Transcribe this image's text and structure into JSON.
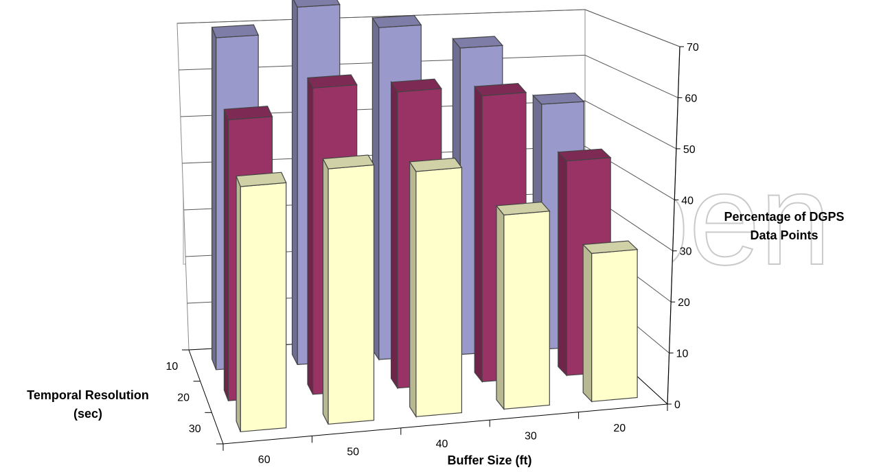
{
  "chart_data": {
    "type": "bar",
    "subtype": "3d-column",
    "x_axis": {
      "label": "Buffer Size (ft)",
      "categories": [
        "60",
        "50",
        "40",
        "30",
        "20"
      ]
    },
    "z_axis": {
      "label": "Temporal Resolution (sec)",
      "label_lines": [
        "Temporal Resolution",
        "(sec)"
      ],
      "categories": [
        "10",
        "20",
        "30"
      ]
    },
    "y_axis": {
      "label": "Percentage of DGPS Data Points",
      "label_lines": [
        "Percentage of DGPS",
        "Data Points"
      ],
      "ticks": [
        "0",
        "10",
        "20",
        "30",
        "40",
        "50",
        "60",
        "70"
      ],
      "ylim": [
        0,
        70
      ]
    },
    "series": [
      {
        "values": [
          65,
          70,
          65,
          60,
          48
        ],
        "color": "#9999cc"
      },
      {
        "values": [
          55,
          60,
          58,
          56,
          42
        ],
        "color": "#993366"
      },
      {
        "values": [
          48,
          50,
          48,
          38,
          29
        ],
        "color": "#ffffcc"
      }
    ],
    "grid": true,
    "watermark": "IntechOpen"
  }
}
